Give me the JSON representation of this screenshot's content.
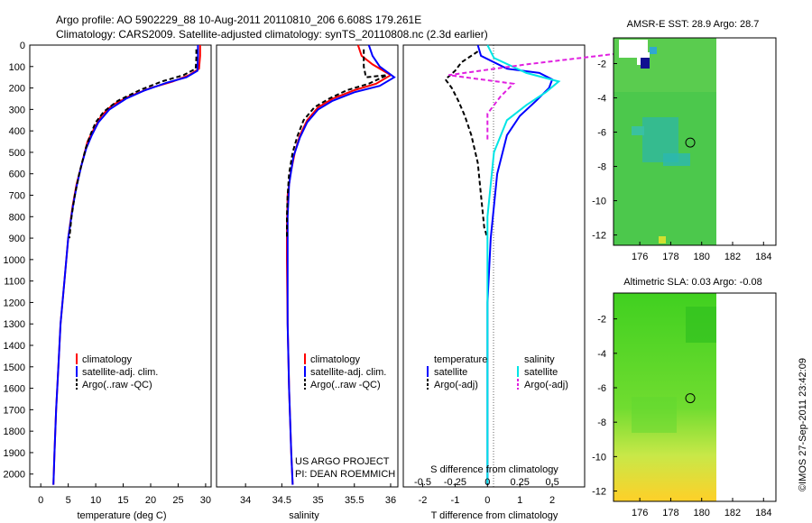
{
  "header": {
    "line1": "Argo profile: AO 5902229_88 10-Aug-2011 20110810_206 6.608S 179.261E",
    "line2": "Climatology: CARS2009. Satellite-adjusted climatology: synTS_20110808.nc (2.3d earlier)"
  },
  "footer_timestamp": "©IMOS 27-Sep-2011 23:42:09",
  "colors": {
    "red": "#ff0000",
    "blue": "#0000ff",
    "black": "#000000",
    "cyan": "#00e5e5",
    "magenta": "#e020e0"
  },
  "chart_data": [
    {
      "type": "line",
      "name": "temperature-profile",
      "xlabel": "temperature (deg C)",
      "ylabel": "depth",
      "xlim": [
        -2,
        31
      ],
      "ylim": [
        2060,
        0
      ],
      "xticks": [
        "0",
        "5",
        "10",
        "15",
        "20",
        "25",
        "30"
      ],
      "yticks": [
        "0",
        "100",
        "200",
        "300",
        "400",
        "500",
        "600",
        "700",
        "800",
        "900",
        "1000",
        "1100",
        "1200",
        "1300",
        "1400",
        "1500",
        "1600",
        "1700",
        "1800",
        "1900",
        "2000"
      ],
      "legend": [
        "climatology",
        "satellite-adj. clim.",
        "Argo(..raw -QC)"
      ],
      "series": [
        {
          "name": "climatology",
          "color": "red",
          "points": [
            [
              29.0,
              0
            ],
            [
              29.0,
              50
            ],
            [
              28.8,
              110
            ],
            [
              27,
              140
            ],
            [
              24,
              170
            ],
            [
              20,
              200
            ],
            [
              16,
              240
            ],
            [
              13,
              280
            ],
            [
              11,
              330
            ],
            [
              9.5,
              400
            ],
            [
              8.5,
              450
            ],
            [
              7.5,
              550
            ],
            [
              6.5,
              650
            ],
            [
              5.8,
              750
            ],
            [
              5.0,
              900
            ],
            [
              4.3,
              1100
            ],
            [
              3.6,
              1300
            ],
            [
              3.2,
              1500
            ],
            [
              2.8,
              1700
            ],
            [
              2.5,
              1900
            ],
            [
              2.3,
              2050
            ]
          ]
        },
        {
          "name": "satellite-adj. clim.",
          "color": "blue",
          "points": [
            [
              28.6,
              0
            ],
            [
              28.6,
              50
            ],
            [
              28.5,
              120
            ],
            [
              26.5,
              150
            ],
            [
              23,
              175
            ],
            [
              19,
              210
            ],
            [
              15.5,
              250
            ],
            [
              12.5,
              300
            ],
            [
              10.5,
              360
            ],
            [
              9.3,
              420
            ],
            [
              8.3,
              480
            ],
            [
              7.4,
              560
            ],
            [
              6.5,
              660
            ],
            [
              5.8,
              760
            ],
            [
              5.0,
              900
            ],
            [
              4.3,
              1100
            ],
            [
              3.6,
              1300
            ],
            [
              3.2,
              1500
            ],
            [
              2.8,
              1700
            ],
            [
              2.5,
              1900
            ],
            [
              2.3,
              2050
            ]
          ]
        },
        {
          "name": "Argo(..raw -QC)",
          "color": "black",
          "dashed": true,
          "points": [
            [
              28.3,
              20
            ],
            [
              28.3,
              60
            ],
            [
              28.2,
              110
            ],
            [
              26,
              140
            ],
            [
              22,
              170
            ],
            [
              18,
              210
            ],
            [
              14,
              260
            ],
            [
              11.5,
              310
            ],
            [
              10,
              360
            ],
            [
              9,
              420
            ],
            [
              8.2,
              480
            ],
            [
              7.0,
              600
            ],
            [
              6.2,
              700
            ],
            [
              5.6,
              800
            ],
            [
              5.2,
              900
            ]
          ]
        }
      ]
    },
    {
      "type": "line",
      "name": "salinity-profile",
      "xlabel": "salinity",
      "xlim": [
        33.6,
        36.1
      ],
      "ylim": [
        2060,
        0
      ],
      "xticks": [
        "34",
        "34.5",
        "35",
        "35.5",
        "36"
      ],
      "legend": [
        "climatology",
        "satellite-adj. clim.",
        "Argo(..raw -QC)"
      ],
      "credit": [
        "US ARGO PROJECT",
        "PI: DEAN ROEMMICH"
      ],
      "series": [
        {
          "name": "climatology",
          "color": "red",
          "points": [
            [
              35.55,
              0
            ],
            [
              35.6,
              50
            ],
            [
              35.75,
              90
            ],
            [
              36.0,
              140
            ],
            [
              35.8,
              180
            ],
            [
              35.5,
              210
            ],
            [
              35.2,
              250
            ],
            [
              35.0,
              290
            ],
            [
              34.85,
              350
            ],
            [
              34.75,
              420
            ],
            [
              34.68,
              500
            ],
            [
              34.62,
              600
            ],
            [
              34.58,
              700
            ],
            [
              34.57,
              850
            ],
            [
              34.57,
              1000
            ],
            [
              34.58,
              1300
            ],
            [
              34.6,
              1600
            ],
            [
              34.63,
              1900
            ],
            [
              34.65,
              2050
            ]
          ]
        },
        {
          "name": "satellite-adj. clim.",
          "color": "blue",
          "points": [
            [
              35.7,
              0
            ],
            [
              35.75,
              50
            ],
            [
              35.85,
              100
            ],
            [
              36.05,
              150
            ],
            [
              35.85,
              190
            ],
            [
              35.5,
              220
            ],
            [
              35.2,
              260
            ],
            [
              35.0,
              300
            ],
            [
              34.85,
              360
            ],
            [
              34.75,
              430
            ],
            [
              34.66,
              520
            ],
            [
              34.6,
              650
            ],
            [
              34.58,
              800
            ],
            [
              34.58,
              1000
            ],
            [
              34.58,
              1300
            ],
            [
              34.6,
              1600
            ],
            [
              34.63,
              1900
            ],
            [
              34.65,
              2050
            ]
          ]
        },
        {
          "name": "Argo(..raw -QC)",
          "color": "black",
          "dashed": true,
          "points": [
            [
              35.63,
              20
            ],
            [
              35.63,
              100
            ],
            [
              35.66,
              150
            ],
            [
              35.95,
              140
            ],
            [
              35.7,
              180
            ],
            [
              35.4,
              210
            ],
            [
              35.15,
              250
            ],
            [
              34.95,
              290
            ],
            [
              34.8,
              350
            ],
            [
              34.72,
              420
            ],
            [
              34.65,
              500
            ],
            [
              34.6,
              600
            ],
            [
              34.58,
              700
            ],
            [
              34.57,
              800
            ],
            [
              34.57,
              900
            ]
          ]
        }
      ]
    },
    {
      "type": "line",
      "name": "difference-profile",
      "xlabel": "T difference from climatology",
      "xlabel_top": "S difference from climatology",
      "xlim": [
        -2.6,
        3.0
      ],
      "ylim": [
        2060,
        0
      ],
      "xticks": [
        "-2",
        "-1",
        "0",
        "1",
        "2"
      ],
      "xticks_top": [
        "-0.5",
        "-0.25",
        "0",
        "0.25",
        "0.5"
      ],
      "legend_headers": [
        "temperature",
        "salinity"
      ],
      "legend": [
        "satellite",
        "Argo(-adj)",
        "satellite",
        "Argo(-adj)"
      ],
      "series": [
        {
          "name": "T satellite",
          "color": "blue",
          "points": [
            [
              -0.3,
              0
            ],
            [
              -0.2,
              50
            ],
            [
              0.6,
              110
            ],
            [
              1.6,
              130
            ],
            [
              2.0,
              160
            ],
            [
              1.9,
              200
            ],
            [
              1.5,
              260
            ],
            [
              1.0,
              330
            ],
            [
              0.6,
              420
            ],
            [
              0.3,
              600
            ],
            [
              0.1,
              900
            ],
            [
              0,
              1200
            ],
            [
              0,
              2050
            ]
          ]
        },
        {
          "name": "T Argo(-adj)",
          "color": "black",
          "dashed": true,
          "points": [
            [
              -0.3,
              30
            ],
            [
              -0.8,
              80
            ],
            [
              -1.0,
              120
            ],
            [
              -1.3,
              160
            ],
            [
              -1.1,
              200
            ],
            [
              -0.9,
              260
            ],
            [
              -0.7,
              330
            ],
            [
              -0.5,
              420
            ],
            [
              -0.3,
              550
            ],
            [
              -0.2,
              700
            ],
            [
              -0.1,
              850
            ],
            [
              0,
              900
            ]
          ]
        },
        {
          "name": "S satellite",
          "color": "cyan",
          "points": [
            [
              0,
              0
            ],
            [
              0.05,
              60
            ],
            [
              0.3,
              130
            ],
            [
              0.55,
              170
            ],
            [
              0.45,
              220
            ],
            [
              0.3,
              280
            ],
            [
              0.15,
              350
            ],
            [
              0.05,
              500
            ],
            [
              0,
              800
            ],
            [
              0,
              2050
            ]
          ]
        },
        {
          "name": "S Argo(-adj)",
          "color": "magenta",
          "dashed": true,
          "points": [
            [
              1.0,
              40
            ],
            [
              0.3,
              90
            ],
            [
              -0.3,
              140
            ],
            [
              0.2,
              180
            ],
            [
              0.1,
              240
            ],
            [
              0,
              320
            ],
            [
              0,
              450
            ]
          ]
        }
      ]
    },
    {
      "type": "heatmap",
      "name": "sst-map",
      "title": "AMSR-E SST: 28.9 Argo: 28.7",
      "xlim": [
        174.3,
        184.8
      ],
      "ylim": [
        -12.6,
        -0.5
      ],
      "xticks": [
        "176",
        "178",
        "180",
        "182",
        "184"
      ],
      "yticks": [
        "-2",
        "-4",
        "-6",
        "-8",
        "-10",
        "-12"
      ],
      "marker": {
        "lon": 179.261,
        "lat": -6.608
      }
    },
    {
      "type": "heatmap",
      "name": "sla-map",
      "title": "Altimetric SLA: 0.03 Argo: -0.08",
      "xlim": [
        174.3,
        184.8
      ],
      "ylim": [
        -12.6,
        -0.5
      ],
      "xticks": [
        "176",
        "178",
        "180",
        "182",
        "184"
      ],
      "yticks": [
        "-2",
        "-4",
        "-6",
        "-8",
        "-10",
        "-12"
      ],
      "marker": {
        "lon": 179.261,
        "lat": -6.608
      }
    }
  ]
}
